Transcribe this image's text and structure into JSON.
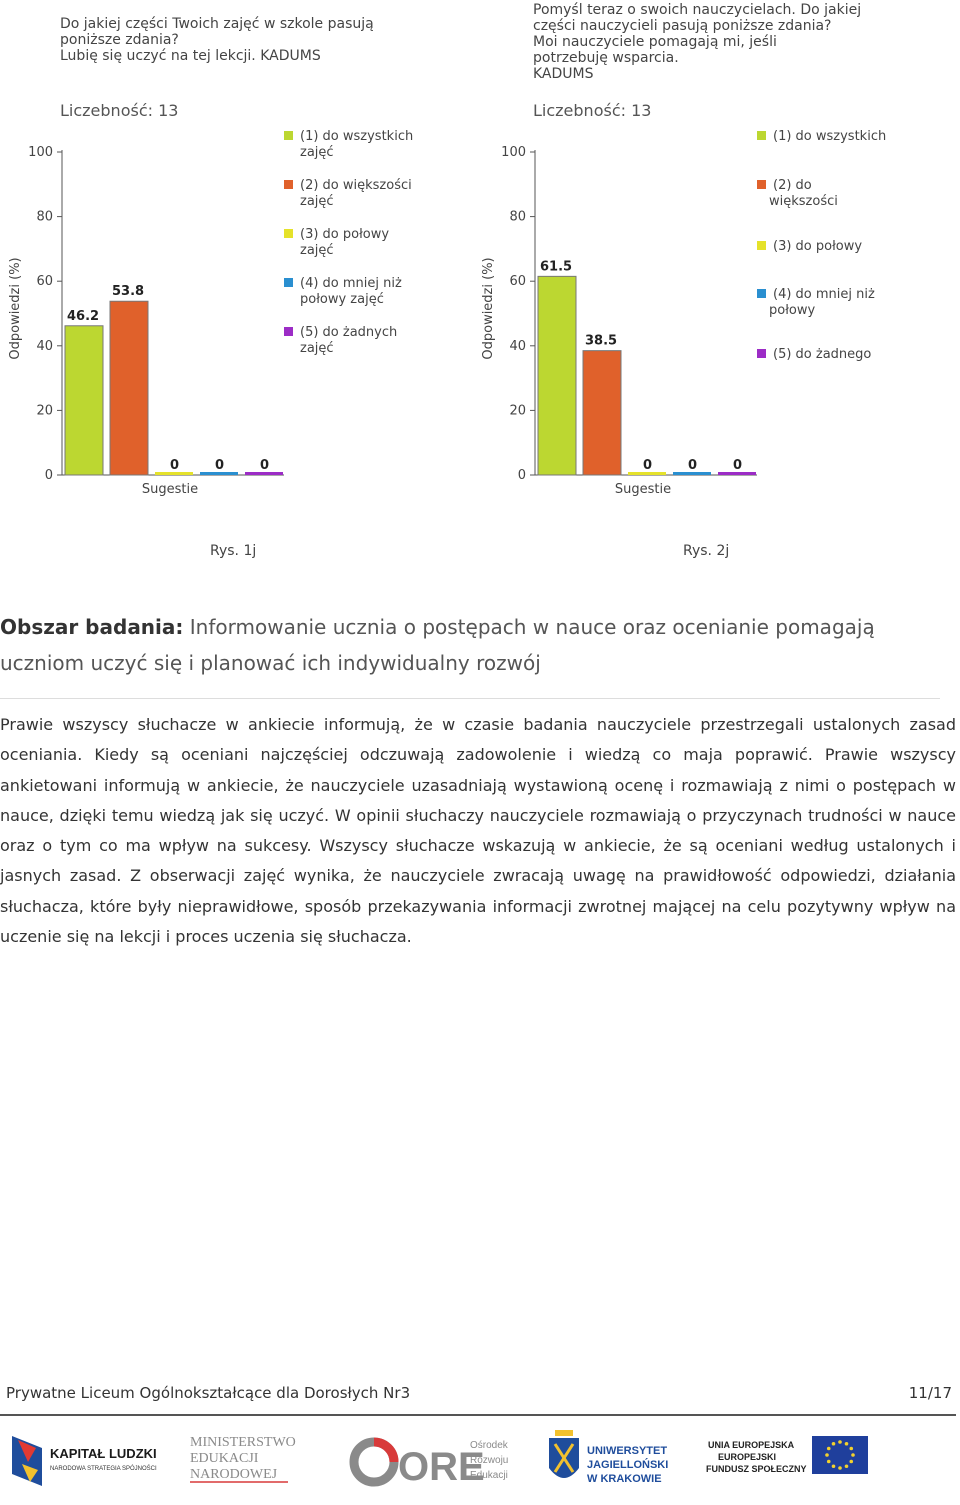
{
  "charts": [
    {
      "question_lines": [
        "Do jakiej części Twoich zajęć w szkole pasują",
        "poniższe zdania?",
        "Lubię się uczyć na tej lekcji. KADUMS"
      ],
      "count_label": "Liczebność: 13",
      "legend_lines": [
        [
          "(1) do wszystkich",
          "zajęć"
        ],
        [
          "(2) do większości",
          "zajęć"
        ],
        [
          "(3) do połowy",
          "zajęć"
        ],
        [
          "(4) do mniej niż",
          "połowy zajęć"
        ],
        [
          "(5) do żadnych",
          "zajęć"
        ]
      ],
      "caption": "Rys. 1j"
    },
    {
      "question_lines": [
        "Pomyśl teraz o swoich nauczycielach. Do jakiej",
        "części nauczycieli pasują poniższe zdania?",
        "Moi nauczyciele pomagają mi, jeśli",
        "potrzebuję wsparcia.",
        "KADUMS"
      ],
      "count_label": "Liczebność: 13",
      "legend_lines": [
        [
          "(1) do wszystkich"
        ],
        [
          "(2) do",
          "większości"
        ],
        [
          "(3) do połowy"
        ],
        [
          "(4) do mniej niż",
          "połowy"
        ],
        [
          "(5) do żadnego"
        ]
      ],
      "caption": "Rys. 2j"
    }
  ],
  "chart_data": [
    {
      "type": "bar",
      "categories": [
        "(1)",
        "(2)",
        "(3)",
        "(4)",
        "(5)"
      ],
      "values": [
        46.2,
        53.8,
        0,
        0,
        0
      ],
      "value_labels": [
        "46.2",
        "53.8",
        "0",
        "0",
        "0"
      ],
      "colors": [
        "#bcd731",
        "#e0612b",
        "#e5e22a",
        "#2a8fd0",
        "#9c2cc6"
      ],
      "xlabel": "Sugestie",
      "ylabel": "Odpowiedzi (%)",
      "ylim": [
        0,
        100
      ],
      "yticks": [
        0,
        20,
        40,
        60,
        80,
        100
      ],
      "legend": "right"
    },
    {
      "type": "bar",
      "categories": [
        "(1)",
        "(2)",
        "(3)",
        "(4)",
        "(5)"
      ],
      "values": [
        61.5,
        38.5,
        0,
        0,
        0
      ],
      "value_labels": [
        "61.5",
        "38.5",
        "0",
        "0",
        "0"
      ],
      "colors": [
        "#bcd731",
        "#e0612b",
        "#e5e22a",
        "#2a8fd0",
        "#9c2cc6"
      ],
      "xlabel": "Sugestie",
      "ylabel": "Odpowiedzi (%)",
      "ylim": [
        0,
        100
      ],
      "yticks": [
        0,
        20,
        40,
        60,
        80,
        100
      ],
      "legend": "right"
    }
  ],
  "section": {
    "heading_bold": "Obszar badania:",
    "heading_text": " Informowanie ucznia o postępach w nauce oraz ocenianie pomagają uczniom uczyć się i planować ich indywidualny rozwój",
    "paragraph": "Prawie wszyscy słuchacze w ankiecie informują, że w czasie badania nauczyciele przestrzegali ustalonych zasad oceniania. Kiedy są oceniani najczęściej odczuwają zadowolenie i wiedzą co maja poprawić. Prawie wszyscy ankietowani informują w ankiecie, że nauczyciele uzasadniają wystawioną ocenę i rozmawiają z nimi o postępach w nauce, dzięki temu wiedzą jak się uczyć. W opinii słuchaczy nauczyciele rozmawiają o przyczynach trudności w nauce oraz o tym co ma wpływ na sukcesy. Wszyscy słuchacze wskazują w ankiecie, że są oceniani według ustalonych i jasnych zasad. Z obserwacji zajęć wynika, że nauczyciele zwracają uwagę na prawidłowość odpowiedzi, działania słuchacza, które były nieprawidłowe, sposób przekazywania informacji zwrotnej mającej na celu pozytywny wpływ na uczenie się na lekcji i proces uczenia się słuchacza."
  },
  "footer": {
    "school": "Prywatne Liceum Ogólnokształcące dla Dorosłych Nr3",
    "page": "11/17"
  },
  "logos": {
    "kapital_title": "KAPITAŁ LUDZKI",
    "kapital_sub": "NARODOWA STRATEGIA SPÓJNOŚCI",
    "men_lines": [
      "MINISTERSTWO",
      "EDUKACJI",
      "NARODOWEJ"
    ],
    "ore_word": "ORE",
    "ore_lines": [
      "Ośrodek",
      "Rozwoju",
      "Edukacji"
    ],
    "uj_lines": [
      "UNIWERSYTET",
      "JAGIELLOŃSKI",
      "W KRAKOWIE"
    ],
    "ue_lines": [
      "UNIA EUROPEJSKA",
      "EUROPEJSKI",
      "FUNDUSZ SPOŁECZNY"
    ]
  }
}
